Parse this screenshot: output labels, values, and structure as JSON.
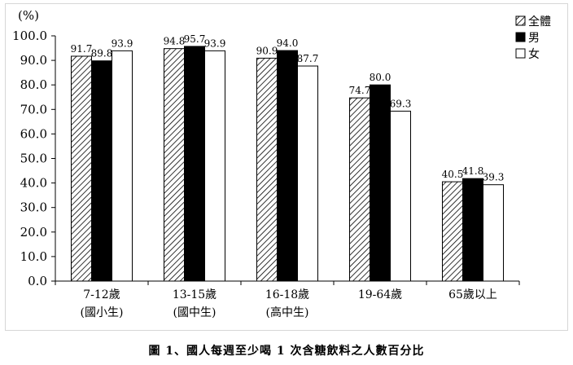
{
  "chart_data": {
    "type": "bar",
    "title": "",
    "ylabel": "(%)",
    "xlabel": "",
    "ylim": [
      0,
      100
    ],
    "yticks": [
      "0.0",
      "10.0",
      "20.0",
      "30.0",
      "40.0",
      "50.0",
      "60.0",
      "70.0",
      "80.0",
      "90.0",
      "100.0"
    ],
    "categories": [
      {
        "line1": "7-12歲",
        "line2": "(國小生)"
      },
      {
        "line1": "13-15歲",
        "line2": "(國中生)"
      },
      {
        "line1": "16-18歲",
        "line2": "(高中生)"
      },
      {
        "line1": "19-64歲",
        "line2": ""
      },
      {
        "line1": "65歲以上",
        "line2": ""
      }
    ],
    "series": [
      {
        "name": "全體",
        "pattern": "hatched",
        "values": [
          91.7,
          94.8,
          90.9,
          74.7,
          40.5
        ]
      },
      {
        "name": "男",
        "pattern": "black",
        "values": [
          89.8,
          95.7,
          94.0,
          80.0,
          41.8
        ]
      },
      {
        "name": "女",
        "pattern": "white",
        "values": [
          93.9,
          93.9,
          87.7,
          69.3,
          39.3
        ]
      }
    ],
    "legend_position": "top-right",
    "grid": false
  },
  "caption": "圖 1、國人每週至少喝 1 次含糖飲料之人數百分比"
}
